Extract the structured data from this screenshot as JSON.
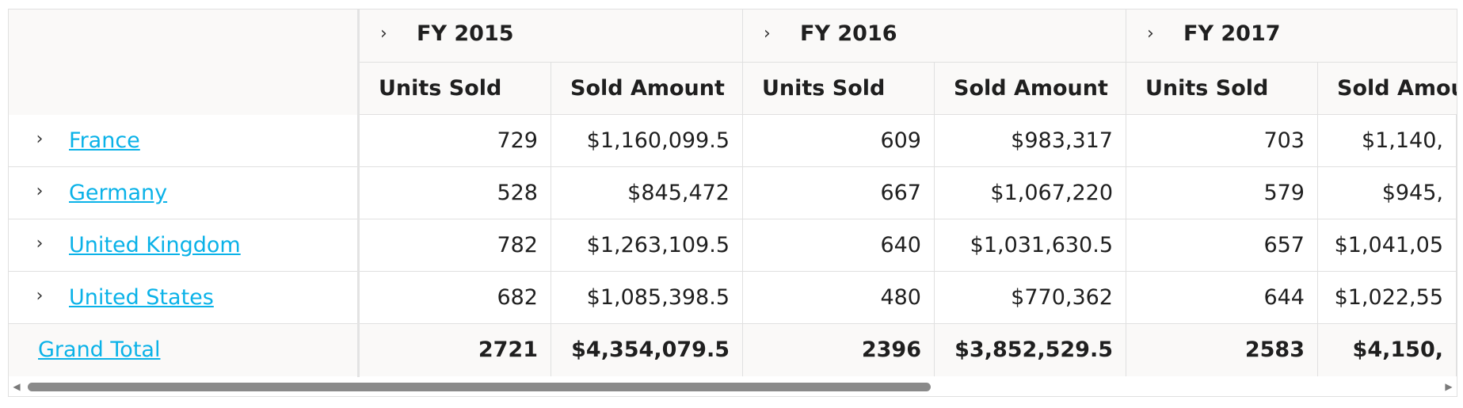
{
  "row_headers": [
    {
      "label": "France"
    },
    {
      "label": "Germany"
    },
    {
      "label": "United Kingdom"
    },
    {
      "label": "United States"
    }
  ],
  "grand_total_label": "Grand Total",
  "years": [
    {
      "label": "FY 2015",
      "measures": [
        "Units Sold",
        "Sold Amount"
      ]
    },
    {
      "label": "FY 2016",
      "measures": [
        "Units Sold",
        "Sold Amount"
      ]
    },
    {
      "label": "FY 2017",
      "measures": [
        "Units Sold",
        "Sold Amou"
      ]
    }
  ],
  "rows": [
    [
      "729",
      "$1,160,099.5",
      "609",
      "$983,317",
      "703",
      "$1,140,"
    ],
    [
      "528",
      "$845,472",
      "667",
      "$1,067,220",
      "579",
      "$945,"
    ],
    [
      "782",
      "$1,263,109.5",
      "640",
      "$1,031,630.5",
      "657",
      "$1,041,05"
    ],
    [
      "682",
      "$1,085,398.5",
      "480",
      "$770,362",
      "644",
      "$1,022,55"
    ]
  ],
  "totals": [
    "2721",
    "$4,354,079.5",
    "2396",
    "$3,852,529.5",
    "2583",
    "$4,150,"
  ],
  "icons": {
    "expand": "chevron-right-icon",
    "scroll_left": "scroll-left-arrow-icon",
    "scroll_right": "scroll-right-arrow-icon"
  },
  "colors": {
    "link": "#0ab2e8",
    "header_bg": "#faf9f8",
    "grid_border": "#e0e0e0",
    "scroll_thumb": "#8a8a8a"
  }
}
